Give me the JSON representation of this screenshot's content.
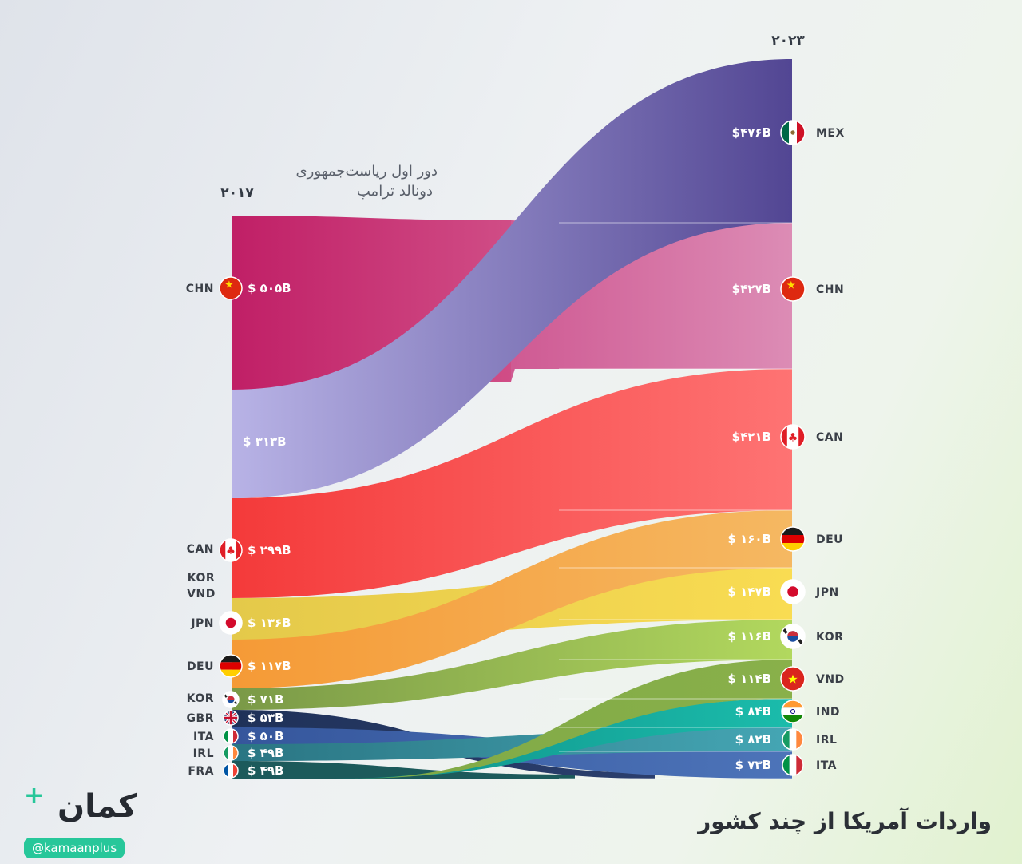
{
  "title": "واردات آمریکا از چند کشور",
  "note_line1": "دور اول ریاست‌جمهوری",
  "note_line2": "دونالد ترامپ",
  "brand": {
    "name": "کمان",
    "handle": "@kamaanplus",
    "accent_color": "#27c79a"
  },
  "chart_data": {
    "type": "sankey",
    "unit": "$B",
    "left_label": "۲۰۱۷",
    "right_label": "۲۰۲۳",
    "left": [
      {
        "code": "CHN",
        "value": 505,
        "label": "$ ۵۰۵B",
        "flag": "chn",
        "color": "#c9236d"
      },
      {
        "code": "",
        "value": 313,
        "label": "$ ۳۱۳B",
        "flag": "",
        "color": "#aca7dd"
      },
      {
        "code": "CAN",
        "value": 299,
        "label": "$ ۲۹۹B",
        "flag": "can",
        "color": "#f53f3f"
      },
      {
        "code": "KOR\nVND",
        "value": 0,
        "label": "",
        "flag": "",
        "color": ""
      },
      {
        "code": "JPN",
        "value": 136,
        "label": "$ ۱۳۶B",
        "flag": "jpn",
        "color": "#e8cf4a"
      },
      {
        "code": "DEU",
        "value": 117,
        "label": "$ ۱۱۷B",
        "flag": "deu",
        "color": "#f3a53b"
      },
      {
        "code": "KOR",
        "value": 71,
        "label": "$ ۷۱B",
        "flag": "kor",
        "color": "#7f9c4a"
      },
      {
        "code": "GBR",
        "value": 53,
        "label": "$ ۵۳B",
        "flag": "gbr",
        "color": "#24375f"
      },
      {
        "code": "ITA",
        "value": 50,
        "label": "$ ۵۰B",
        "flag": "ita",
        "color": "#3a5ea8"
      },
      {
        "code": "IRL",
        "value": 49,
        "label": "$ ۴۹B",
        "flag": "irl",
        "color": "#2f7f8f"
      },
      {
        "code": "FRA",
        "value": 49,
        "label": "$ ۴۹B",
        "flag": "fra",
        "color": "#1d5c5d"
      }
    ],
    "right": [
      {
        "code": "MEX",
        "value": 476,
        "label": "$۴۷۶B",
        "flag": "mex",
        "color": "#5b4f9a"
      },
      {
        "code": "CHN",
        "value": 427,
        "label": "$۴۲۷B",
        "flag": "chn",
        "color": "#d884b0"
      },
      {
        "code": "CAN",
        "value": 421,
        "label": "$۴۲۱B",
        "flag": "can",
        "color": "#fd6a6a"
      },
      {
        "code": "DEU",
        "value": 160,
        "label": "$ ۱۶۰B",
        "flag": "deu",
        "color": "#f5b25a"
      },
      {
        "code": "JPN",
        "value": 147,
        "label": "$ ۱۴۷B",
        "flag": "jpn",
        "color": "#f7d94f"
      },
      {
        "code": "KOR",
        "value": 116,
        "label": "$ ۱۱۶B",
        "flag": "kor",
        "color": "#a9d05a"
      },
      {
        "code": "VND",
        "value": 114,
        "label": "$ ۱۱۴B",
        "flag": "vnd",
        "color": "#86ad45"
      },
      {
        "code": "IND",
        "value": 84,
        "label": "$ ۸۴B",
        "flag": "ind",
        "color": "#19b3a3"
      },
      {
        "code": "IRL",
        "value": 82,
        "label": "$ ۸۲B",
        "flag": "irl",
        "color": "#3ea1b0"
      },
      {
        "code": "ITA",
        "value": 73,
        "label": "$ ۷۳B",
        "flag": "ita",
        "color": "#4970b5"
      }
    ],
    "flows": [
      {
        "from": "CHN",
        "to": "CHN"
      },
      {
        "from": "",
        "to": "MEX"
      },
      {
        "from": "CAN",
        "to": "CAN"
      },
      {
        "from": "JPN",
        "to": "JPN"
      },
      {
        "from": "DEU",
        "to": "DEU"
      },
      {
        "from": "KOR",
        "to": "KOR"
      },
      {
        "from": "GBR",
        "to": ""
      },
      {
        "from": "ITA",
        "to": "ITA"
      },
      {
        "from": "IRL",
        "to": "IRL"
      },
      {
        "from": "FRA",
        "to": ""
      },
      {
        "from": "",
        "to": "VND"
      },
      {
        "from": "",
        "to": "IND"
      }
    ]
  }
}
